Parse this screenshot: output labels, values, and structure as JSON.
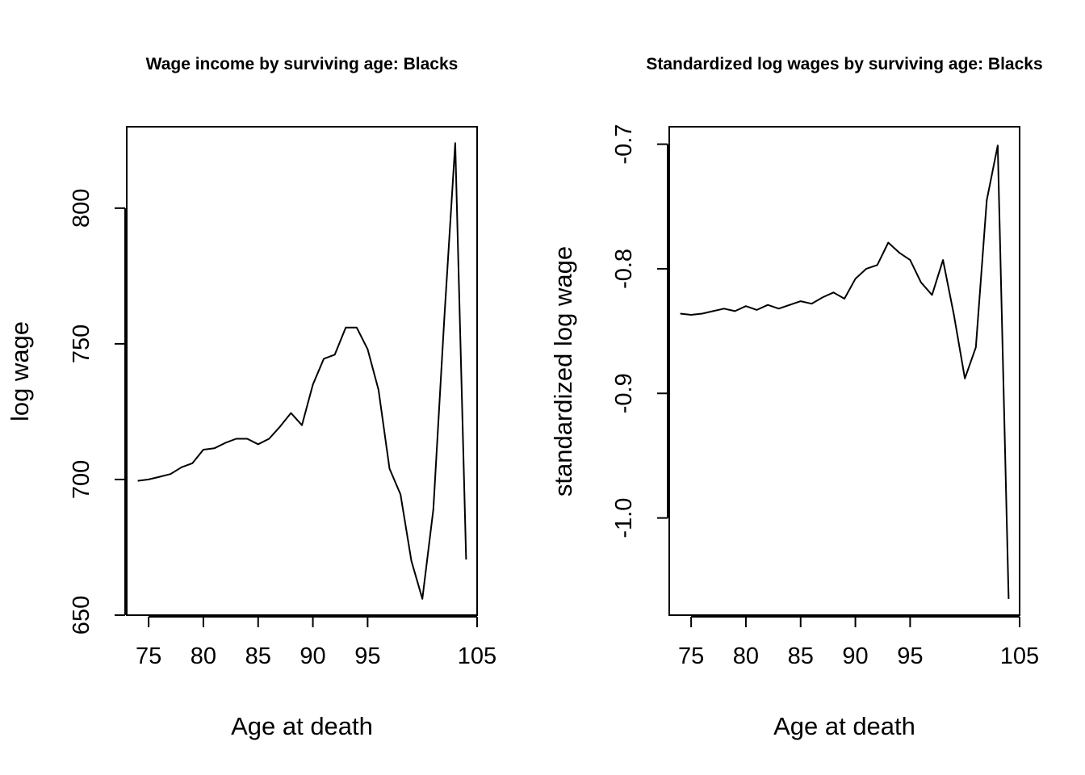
{
  "chart_data": [
    {
      "type": "line",
      "title": "Wage income by surviving age: Blacks",
      "xlabel": "Age at death",
      "ylabel": "log wage",
      "xlim": [
        73,
        105
      ],
      "ylim": [
        650,
        830
      ],
      "xticks": [
        75,
        80,
        85,
        90,
        95,
        105
      ],
      "yticks": [
        650,
        700,
        750,
        800
      ],
      "grid": false,
      "series": [
        {
          "x": [
            74,
            75,
            76,
            77,
            78,
            79,
            80,
            81,
            82,
            83,
            84,
            85,
            86,
            87,
            88,
            89,
            90,
            91,
            92,
            93,
            94,
            95,
            96,
            97,
            98,
            99,
            100,
            101,
            102,
            103,
            104
          ],
          "y": [
            699.5,
            700,
            701,
            702,
            704.5,
            706,
            711,
            711.5,
            713.5,
            715,
            715,
            713,
            715,
            719.5,
            724.5,
            720,
            735,
            744.5,
            746,
            756,
            756,
            748,
            733,
            704,
            694.5,
            670,
            656,
            689,
            759,
            824,
            670.5
          ]
        }
      ]
    },
    {
      "type": "line",
      "title": "Standardized log wages by surviving age: Blacks",
      "xlabel": "Age at death",
      "ylabel": "standardized log wage",
      "xlim": [
        73,
        105
      ],
      "ylim": [
        -1.078,
        -0.686
      ],
      "xticks": [
        75,
        80,
        85,
        90,
        95,
        105
      ],
      "yticks": [
        -1.0,
        -0.9,
        -0.8,
        -0.7
      ],
      "ytick_labels": [
        "-1.0",
        "-0.9",
        "-0.8",
        "-0.7"
      ],
      "grid": false,
      "series": [
        {
          "x": [
            74,
            75,
            76,
            77,
            78,
            79,
            80,
            81,
            82,
            83,
            84,
            85,
            86,
            87,
            88,
            89,
            90,
            91,
            92,
            93,
            94,
            95,
            96,
            97,
            98,
            99,
            100,
            101,
            102,
            103,
            104
          ],
          "y": [
            -0.836,
            -0.837,
            -0.836,
            -0.834,
            -0.832,
            -0.834,
            -0.83,
            -0.833,
            -0.829,
            -0.832,
            -0.829,
            -0.826,
            -0.828,
            -0.823,
            -0.819,
            -0.824,
            -0.808,
            -0.8,
            -0.797,
            -0.779,
            -0.787,
            -0.793,
            -0.811,
            -0.821,
            -0.793,
            -0.837,
            -0.888,
            -0.863,
            -0.745,
            -0.701,
            -1.065
          ]
        }
      ]
    }
  ]
}
